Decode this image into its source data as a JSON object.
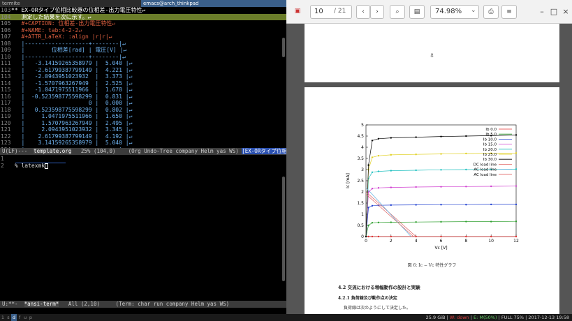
{
  "titlebars": {
    "left": "termite",
    "middle": "emacs@arch_thinkpad"
  },
  "editor": {
    "lines": [
      {
        "n": "103",
        "text": "** EX-ORタイプ位相比較器の位相差-出力電圧特性↵",
        "style": "heading"
      },
      {
        "n": "104",
        "text": "   測定した結果を次に示す。↵",
        "style": "hl"
      },
      {
        "n": "105",
        "text": "   #+CAPTION: 位相差-出力電圧特性↵",
        "style": "meta"
      },
      {
        "n": "106",
        "text": "   #+NAME: tab:4-2-2↵",
        "style": "meta"
      },
      {
        "n": "107",
        "text": "   #+ATTR_LaTeX: :align |r|r|↵",
        "style": "meta"
      },
      {
        "n": "108",
        "text": "   |-------------------+--------|↵",
        "style": "tbl"
      },
      {
        "n": "109",
        "text": "   |        位相差[rad] | 電圧[V] |↵",
        "style": "tbl"
      },
      {
        "n": "110",
        "text": "   |-------------------+--------|↵",
        "style": "tbl"
      },
      {
        "n": "111",
        "text": "   |   -3.14159265358979 |  5.040 |↵",
        "style": "tbl"
      },
      {
        "n": "112",
        "text": "   |   -2.61799387799149 |  4.221 |↵",
        "style": "tbl"
      },
      {
        "n": "113",
        "text": "   |   -2.0943951023932  |  3.373 |↵",
        "style": "tbl"
      },
      {
        "n": "114",
        "text": "   |   -1.5707963267949  |  2.525 |↵",
        "style": "tbl"
      },
      {
        "n": "115",
        "text": "   |   -1.0471975511966  |  1.678 |↵",
        "style": "tbl"
      },
      {
        "n": "116",
        "text": "   |  -0.523598775598299 |  0.831 |↵",
        "style": "tbl"
      },
      {
        "n": "117",
        "text": "   |                   0 |  0.000 |↵",
        "style": "tbl"
      },
      {
        "n": "118",
        "text": "   |   0.523598775598299 |  0.802 |↵",
        "style": "tbl"
      },
      {
        "n": "119",
        "text": "   |     1.0471975511966 |  1.650 |↵",
        "style": "tbl"
      },
      {
        "n": "120",
        "text": "   |     1.5707963267949 |  2.495 |↵",
        "style": "tbl"
      },
      {
        "n": "121",
        "text": "   |     2.0943951023932 |  3.345 |↵",
        "style": "tbl"
      },
      {
        "n": "122",
        "text": "   |    2.61799387799149 |  4.192 |↵",
        "style": "tbl"
      },
      {
        "n": "123",
        "text": "   |    3.14159265358979 |  5.040 |↵",
        "style": "tbl"
      },
      {
        "n": "124",
        "text": "   |-------------------+--------|↵",
        "style": "tbl"
      }
    ],
    "modeline": {
      "prefix": "U(LF)---  ",
      "buffer": "template.org",
      "middle": "   25% (104,0)    (Org Undo-Tree company Helm yas WS) ",
      "ext": "[EX-ORタイプ位相比較器"
    }
  },
  "terminal": {
    "lines": [
      {
        "n": "1",
        "text": ""
      },
      {
        "n": "2",
        "text": " % latexmk"
      }
    ],
    "modeline": {
      "prefix": "U:**-  ",
      "buffer": "*ansi-term*",
      "middle": "   All (2,10)     (Term: char run company Helm yas WS)"
    }
  },
  "pdf": {
    "page_value": "10",
    "page_total": "/ 21",
    "zoom": "74.98%",
    "icons": {
      "doc": "pdf-doc-icon",
      "prev": "‹",
      "next": "›",
      "search": "⌕",
      "sidebar": "▤",
      "save": "⎙",
      "menu": "≡",
      "min": "–",
      "max": "□",
      "close": "×"
    },
    "prev_page_number": "8",
    "figure_caption": "図 6: Ic − Vc 特性グラフ",
    "section_heading": "4.2    交流における増幅動作の設計と実験",
    "subsection_heading": "4.2.1    負荷線及び動作点の決定",
    "body_text": "負荷線は次のようにして決定した。"
  },
  "chart_data": {
    "type": "line",
    "xlabel": "Vc [V]",
    "ylabel": "Ic [mA]",
    "xlim": [
      0,
      12
    ],
    "ylim": [
      0,
      5
    ],
    "xticks": [
      0,
      2,
      4,
      6,
      8,
      10,
      12
    ],
    "yticks": [
      0,
      0.5,
      1,
      1.5,
      2,
      2.5,
      3,
      3.5,
      4,
      4.5,
      5
    ],
    "legend_position": "top-right",
    "series": [
      {
        "name": "Ib 0.0",
        "color": "#e03030",
        "marker": "+",
        "x": [
          0,
          0.2,
          0.5,
          1,
          2,
          4,
          6,
          8,
          10,
          12
        ],
        "y": [
          0,
          0,
          0,
          0,
          0,
          0,
          0,
          0,
          0,
          0
        ]
      },
      {
        "name": "Ib 5.0",
        "color": "#30a030",
        "marker": "x",
        "x": [
          0,
          0.2,
          0.5,
          1,
          2,
          4,
          6,
          8,
          10,
          12
        ],
        "y": [
          0,
          0.5,
          0.62,
          0.63,
          0.64,
          0.65,
          0.66,
          0.67,
          0.67,
          0.68
        ]
      },
      {
        "name": "Ib 10.0",
        "color": "#2040d0",
        "marker": "*",
        "x": [
          0,
          0.2,
          0.5,
          1,
          2,
          4,
          6,
          8,
          10,
          12
        ],
        "y": [
          0,
          1.3,
          1.38,
          1.4,
          1.41,
          1.42,
          1.43,
          1.43,
          1.44,
          1.44
        ]
      },
      {
        "name": "Ib 15.0",
        "color": "#d040d0",
        "marker": "□",
        "x": [
          0,
          0.2,
          0.5,
          1,
          2,
          4,
          6,
          8,
          10,
          12
        ],
        "y": [
          0,
          2.0,
          2.15,
          2.18,
          2.2,
          2.22,
          2.23,
          2.24,
          2.25,
          2.26
        ]
      },
      {
        "name": "Ib 20.0",
        "color": "#20c0c0",
        "marker": "■",
        "x": [
          0,
          0.2,
          0.5,
          1,
          2,
          4,
          6,
          8,
          10,
          12
        ],
        "y": [
          0,
          2.6,
          2.88,
          2.92,
          2.95,
          2.97,
          2.99,
          3.0,
          3.01,
          3.02
        ]
      },
      {
        "name": "Ib 25.0",
        "color": "#e0d020",
        "marker": "○",
        "x": [
          0,
          0.2,
          0.5,
          1,
          2,
          4,
          6,
          8,
          10,
          12
        ],
        "y": [
          0,
          3.0,
          3.55,
          3.62,
          3.66,
          3.68,
          3.7,
          3.72,
          3.73,
          3.74
        ]
      },
      {
        "name": "Ib 30.0",
        "color": "#000000",
        "marker": "●",
        "x": [
          0,
          0.2,
          0.5,
          1,
          2,
          4,
          6,
          8,
          10,
          12
        ],
        "y": [
          0,
          3.2,
          4.3,
          4.38,
          4.42,
          4.45,
          4.48,
          4.5,
          4.52,
          4.55
        ]
      },
      {
        "name": "DC load line",
        "color": "#e06060",
        "marker": "",
        "x": [
          0,
          4
        ],
        "y": [
          2.0,
          0
        ]
      },
      {
        "name": "AC load line",
        "color": "#60b0e0",
        "marker": "",
        "x": [
          0,
          3.6
        ],
        "y": [
          2.2,
          0
        ]
      },
      {
        "name": "AC load line",
        "color": "#e06060",
        "marker": "",
        "x": [
          0,
          3.8
        ],
        "y": [
          1.9,
          0
        ]
      }
    ]
  },
  "statusbar": {
    "workspaces": [
      "1",
      "s",
      "d",
      "f",
      "u",
      "p"
    ],
    "active_workspace": "d",
    "disk": "25.9 GiB",
    "wifi": "W: down",
    "eth": "E: M(50%)",
    "battery": "FULL 75%",
    "datetime": "2017-12-13 19:58"
  }
}
